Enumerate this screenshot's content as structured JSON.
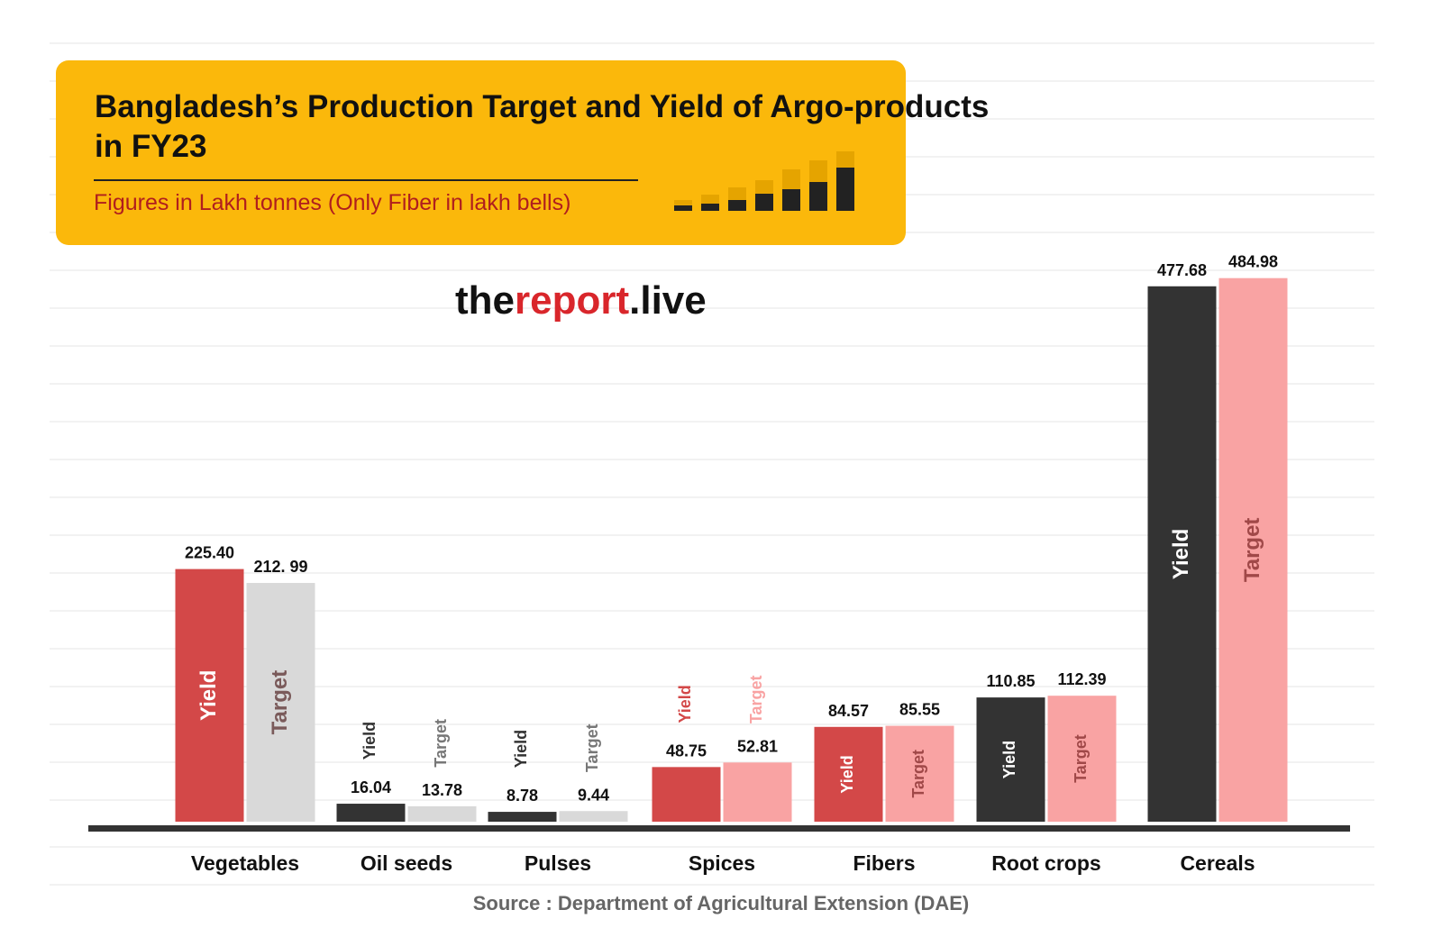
{
  "chart_data": {
    "type": "bar",
    "title": "Bangladesh’s Production Target and Yield of Argo-products in FY23",
    "subtitle": "Figures in Lakh tonnes (Only Fiber in lakh bells)",
    "watermark": [
      "the",
      "report",
      ".live"
    ],
    "source": "Source : Department of Agricultural Extension (DAE)",
    "categories": [
      "Vegetables",
      "Oil seeds",
      "Pulses",
      "Spices",
      "Fibers",
      "Root crops",
      "Cereals"
    ],
    "ylim": [
      0,
      500
    ],
    "series": [
      {
        "name": "Yield",
        "values": [
          225.4,
          16.04,
          8.78,
          48.75,
          84.57,
          110.85,
          477.68
        ],
        "value_labels": [
          "225.40",
          "16.04",
          "8.78",
          "48.75",
          "84.57",
          "110.85",
          "477.68"
        ],
        "colors": [
          "#d34848",
          "#333333",
          "#333333",
          "#d34848",
          "#d34848",
          "#333333",
          "#333333"
        ],
        "label_colors": [
          "#ffffff",
          "#ffffff",
          "#ffffff",
          "#ffffff",
          "#ffffff",
          "#ffffff",
          "#ffffff"
        ]
      },
      {
        "name": "Target",
        "values": [
          212.99,
          13.78,
          9.44,
          52.81,
          85.55,
          112.39,
          484.98
        ],
        "value_labels": [
          "212. 99",
          "13.78",
          "9.44",
          "52.81",
          "85.55",
          "112.39",
          "484.98"
        ],
        "colors": [
          "#d9d9d9",
          "#d9d9d9",
          "#d9d9d9",
          "#f9a3a3",
          "#f9a3a3",
          "#f9a3a3",
          "#f9a3a3"
        ],
        "label_colors": [
          "#7a5a5a",
          "#7a5a5a",
          "#7a5a5a",
          "#a04848",
          "#a04848",
          "#a04848",
          "#a04848"
        ]
      }
    ]
  }
}
